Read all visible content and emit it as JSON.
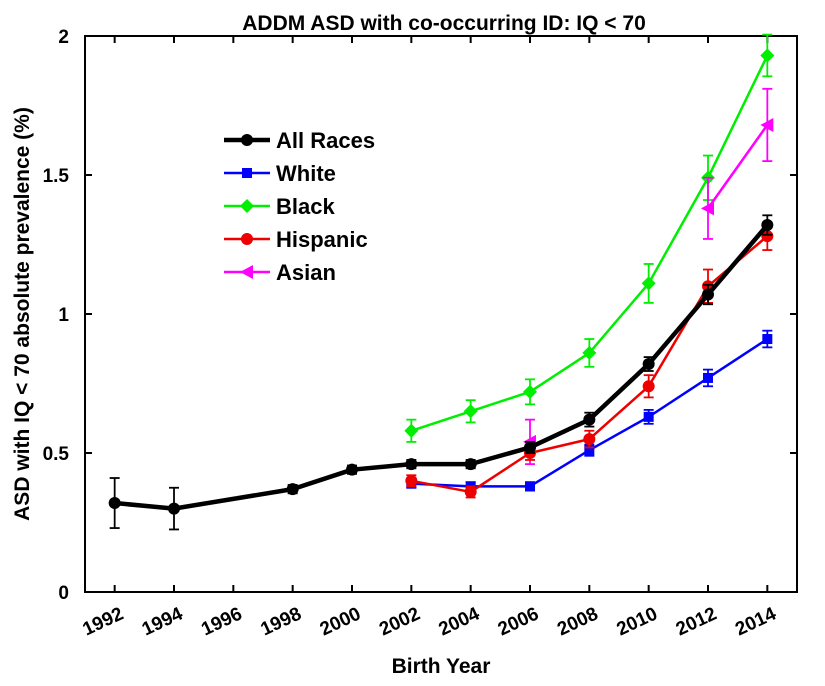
{
  "chart_data": {
    "type": "line",
    "title": "ADDM ASD with co-occurring ID: IQ < 70",
    "xlabel": "Birth Year",
    "ylabel": "ASD with IQ < 70 absolute prevalence (%)",
    "xlim": [
      1991,
      2015
    ],
    "ylim": [
      0,
      2
    ],
    "x_ticks": [
      1992,
      1994,
      1996,
      1998,
      2000,
      2002,
      2004,
      2006,
      2008,
      2010,
      2012,
      2014
    ],
    "x_tick_labels": [
      "1992",
      "1994",
      "1996",
      "1998",
      "2000",
      "2002",
      "2004",
      "2006",
      "2008",
      "2010",
      "2012",
      "2014"
    ],
    "y_ticks": [
      0,
      0.5,
      1,
      1.5,
      2
    ],
    "y_tick_labels": [
      "0",
      "0.5",
      "1",
      "1.5",
      "2"
    ],
    "legend_position": "upper-left",
    "series": [
      {
        "name": "All Races",
        "color": "#000000",
        "marker": "circle",
        "x": [
          1992,
          1994,
          1998,
          2000,
          2002,
          2004,
          2006,
          2008,
          2010,
          2012,
          2014
        ],
        "values": [
          0.32,
          0.3,
          0.37,
          0.44,
          0.46,
          0.46,
          0.52,
          0.62,
          0.82,
          1.07,
          1.32
        ],
        "errors": [
          0.09,
          0.075,
          0.015,
          0.015,
          0.015,
          0.015,
          0.02,
          0.025,
          0.025,
          0.035,
          0.035
        ]
      },
      {
        "name": "White",
        "color": "#0000ff",
        "marker": "square",
        "x": [
          2002,
          2004,
          2006,
          2008,
          2010,
          2012,
          2014
        ],
        "values": [
          0.39,
          0.38,
          0.38,
          0.51,
          0.63,
          0.77,
          0.91
        ],
        "errors": [
          0.015,
          0.015,
          0.015,
          0.02,
          0.025,
          0.03,
          0.03
        ]
      },
      {
        "name": "Black",
        "color": "#00ee00",
        "marker": "diamond",
        "x": [
          2002,
          2004,
          2006,
          2008,
          2010,
          2012,
          2014
        ],
        "values": [
          0.58,
          0.65,
          0.72,
          0.86,
          1.11,
          1.49,
          1.93
        ],
        "errors": [
          0.04,
          0.04,
          0.045,
          0.05,
          0.07,
          0.08,
          0.075
        ]
      },
      {
        "name": "Hispanic",
        "color": "#ee0000",
        "marker": "circle",
        "x": [
          2002,
          2004,
          2006,
          2008,
          2010,
          2012,
          2014
        ],
        "values": [
          0.4,
          0.36,
          0.5,
          0.55,
          0.74,
          1.1,
          1.28
        ],
        "errors": [
          0.02,
          0.02,
          0.025,
          0.03,
          0.04,
          0.06,
          0.05
        ]
      },
      {
        "name": "Asian",
        "color": "#ff00ff",
        "marker": "left-triangle",
        "x": [
          2006,
          2012,
          2014
        ],
        "values": [
          0.54,
          1.38,
          1.68
        ],
        "errors": [
          0.08,
          0.11,
          0.13
        ],
        "connect": [
          false,
          true
        ]
      }
    ]
  }
}
